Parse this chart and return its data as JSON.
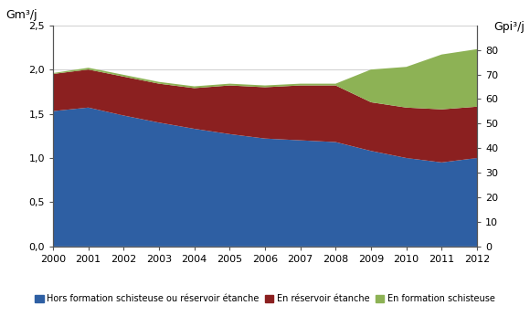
{
  "years": [
    2000,
    2001,
    2002,
    2003,
    2004,
    2005,
    2006,
    2007,
    2008,
    2009,
    2010,
    2011,
    2012
  ],
  "hors_formation": [
    1.53,
    1.57,
    1.48,
    1.4,
    1.33,
    1.27,
    1.22,
    1.2,
    1.18,
    1.08,
    1.0,
    0.95,
    1.0
  ],
  "en_reservoir": [
    0.42,
    0.43,
    0.44,
    0.44,
    0.46,
    0.55,
    0.58,
    0.62,
    0.64,
    0.55,
    0.57,
    0.6,
    0.58
  ],
  "en_formation": [
    0.01,
    0.02,
    0.02,
    0.02,
    0.02,
    0.02,
    0.02,
    0.02,
    0.02,
    0.37,
    0.46,
    0.62,
    0.65
  ],
  "color_hors": "#2E5FA3",
  "color_reservoir": "#8B2020",
  "color_formation": "#8DB255",
  "ylabel_left": "Gm³/j",
  "ylabel_right": "Gpi³/j",
  "ylim_left": [
    0,
    2.5
  ],
  "ylim_right": [
    0,
    90
  ],
  "yticks_left": [
    0.0,
    0.5,
    1.0,
    1.5,
    2.0,
    2.5
  ],
  "yticks_right": [
    0,
    10,
    20,
    30,
    40,
    50,
    60,
    70,
    80
  ],
  "ytick_labels_left": [
    "0,0",
    "0,5",
    "1,0",
    "1,5",
    "2,0",
    "2,5"
  ],
  "ytick_labels_right": [
    "0",
    "10",
    "20",
    "30",
    "40",
    "50",
    "60",
    "70",
    "80"
  ],
  "legend_labels": [
    "Hors formation schisteuse ou réservoir étanche",
    "En réservoir étanche",
    "En formation schisteuse"
  ],
  "background_color": "#ffffff",
  "grid_color": "#c8c8c8",
  "spine_color": "#555555"
}
